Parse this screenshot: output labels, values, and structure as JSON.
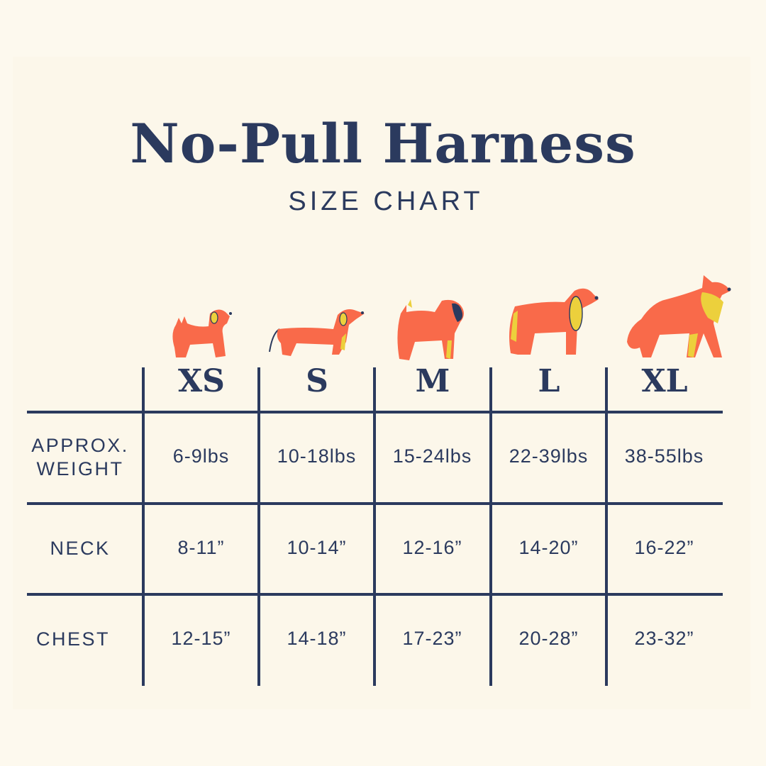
{
  "title": "No-Pull Harness",
  "subtitle": "SIZE CHART",
  "colors": {
    "navy": "#2b3a5e",
    "orange": "#f96a4a",
    "yellow": "#ecd03c",
    "background": "#fcf7ea"
  },
  "sizes": [
    "XS",
    "S",
    "M",
    "L",
    "XL"
  ],
  "rows": [
    {
      "label_line1": "APPROX.",
      "label_line2": "WEIGHT",
      "values": [
        "6-9lbs",
        "10-18lbs",
        "15-24lbs",
        "22-39lbs",
        "38-55lbs"
      ]
    },
    {
      "label_line1": "NECK",
      "label_line2": "",
      "values": [
        "8-11”",
        "10-14”",
        "12-16”",
        "14-20”",
        "16-22”"
      ]
    },
    {
      "label_line1": "CHEST",
      "label_line2": "",
      "values": [
        "12-15”",
        "14-18”",
        "17-23”",
        "20-28”",
        "23-32”"
      ]
    }
  ]
}
